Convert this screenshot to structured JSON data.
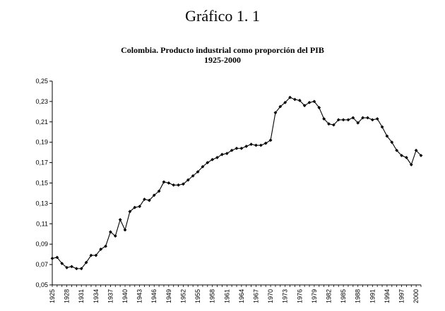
{
  "page": {
    "heading": "Gráfico 1. 1"
  },
  "chart_data": {
    "type": "line",
    "title": "Colombia. Producto industrial como proporción del PIB",
    "subtitle": "1925-2000",
    "xlabel": "",
    "ylabel": "",
    "xlim": [
      1925,
      2001
    ],
    "ylim": [
      0.05,
      0.25
    ],
    "grid": false,
    "marker": "diamond",
    "y_ticks": [
      "0,05",
      "0,07",
      "0,09",
      "0,11",
      "0,13",
      "0,15",
      "0,17",
      "0,19",
      "0,21",
      "0,23",
      "0,25"
    ],
    "x_ticks": [
      "1925",
      "1928",
      "1931",
      "1934",
      "1937",
      "1940",
      "1943",
      "1946",
      "1949",
      "1952",
      "1955",
      "1958",
      "1961",
      "1964",
      "1967",
      "1970",
      "1973",
      "1976",
      "1979",
      "1982",
      "1985",
      "1988",
      "1991",
      "1994",
      "1997",
      "2000"
    ],
    "x": [
      1925,
      1926,
      1927,
      1928,
      1929,
      1930,
      1931,
      1932,
      1933,
      1934,
      1935,
      1936,
      1937,
      1938,
      1939,
      1940,
      1941,
      1942,
      1943,
      1944,
      1945,
      1946,
      1947,
      1948,
      1949,
      1950,
      1951,
      1952,
      1953,
      1954,
      1955,
      1956,
      1957,
      1958,
      1959,
      1960,
      1961,
      1962,
      1963,
      1964,
      1965,
      1966,
      1967,
      1968,
      1969,
      1970,
      1971,
      1972,
      1973,
      1974,
      1975,
      1976,
      1977,
      1978,
      1979,
      1980,
      1981,
      1982,
      1983,
      1984,
      1985,
      1986,
      1987,
      1988,
      1989,
      1990,
      1991,
      1992,
      1993,
      1994,
      1995,
      1996,
      1997,
      1998,
      1999,
      2000,
      2001
    ],
    "values": [
      0.076,
      0.077,
      0.071,
      0.067,
      0.068,
      0.066,
      0.066,
      0.072,
      0.079,
      0.079,
      0.085,
      0.088,
      0.102,
      0.098,
      0.114,
      0.104,
      0.122,
      0.126,
      0.127,
      0.134,
      0.133,
      0.138,
      0.142,
      0.151,
      0.15,
      0.148,
      0.148,
      0.149,
      0.153,
      0.157,
      0.161,
      0.166,
      0.17,
      0.173,
      0.175,
      0.178,
      0.179,
      0.182,
      0.184,
      0.184,
      0.186,
      0.188,
      0.187,
      0.187,
      0.189,
      0.192,
      0.219,
      0.225,
      0.229,
      0.234,
      0.232,
      0.231,
      0.226,
      0.229,
      0.23,
      0.224,
      0.213,
      0.208,
      0.207,
      0.212,
      0.212,
      0.212,
      0.214,
      0.209,
      0.214,
      0.214,
      0.212,
      0.213,
      0.205,
      0.196,
      0.19,
      0.182,
      0.177,
      0.175,
      0.168,
      0.182,
      0.177
    ]
  }
}
